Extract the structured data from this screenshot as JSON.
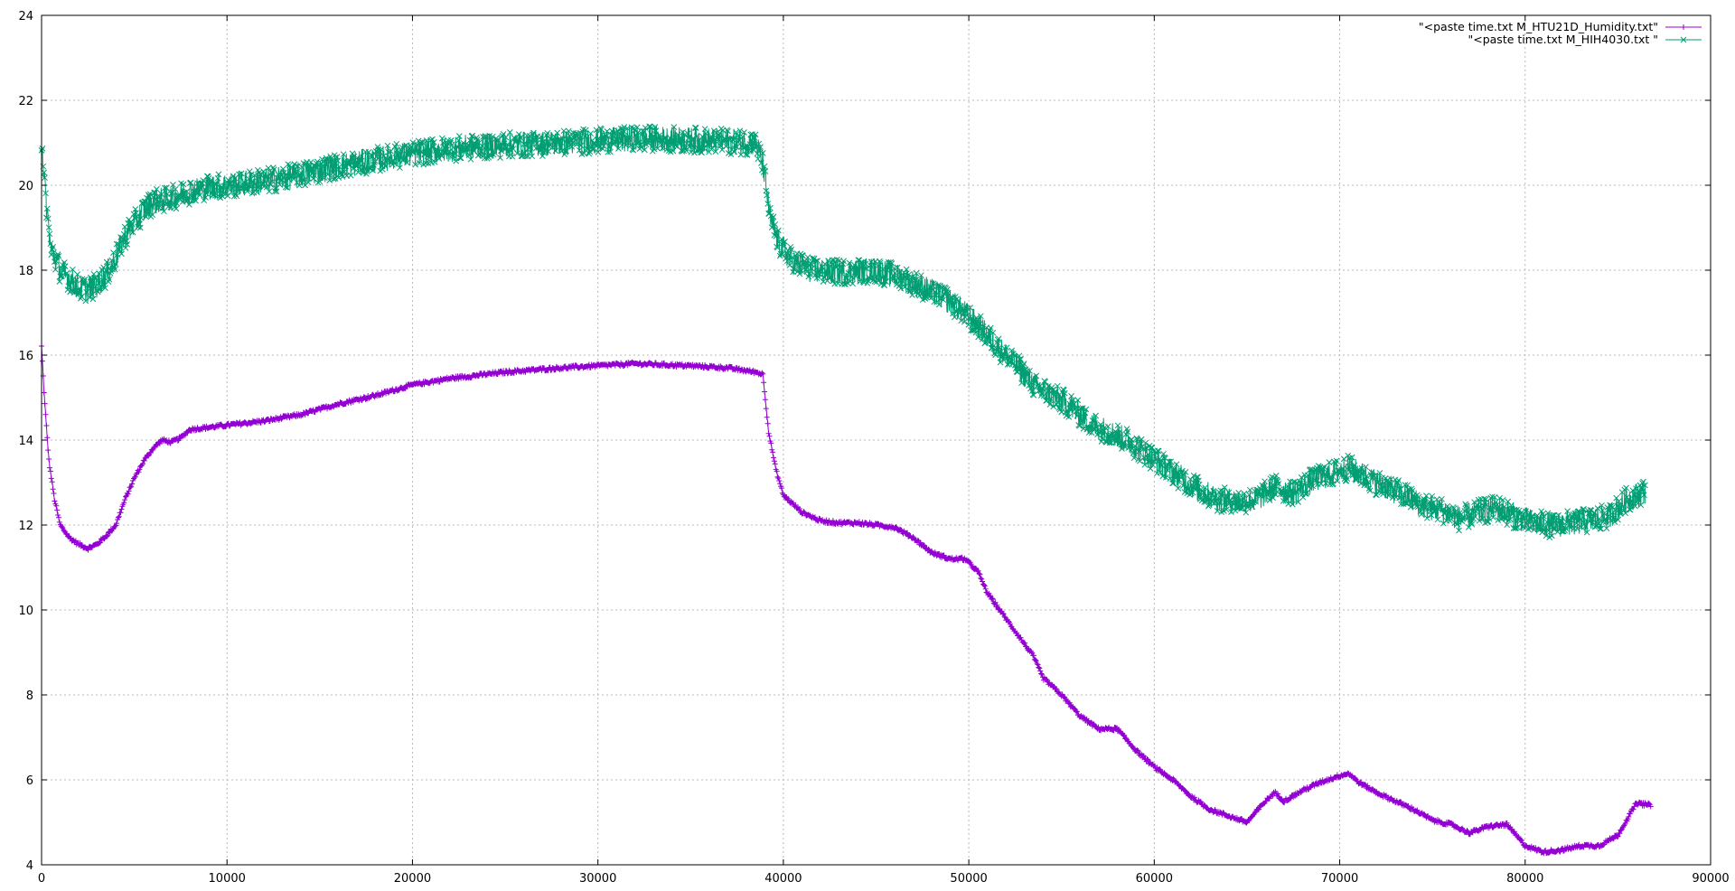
{
  "chart_data": {
    "type": "line",
    "title": "",
    "xlabel": "",
    "ylabel": "",
    "xlim": [
      0,
      90000
    ],
    "ylim": [
      4,
      24
    ],
    "xticks": [
      0,
      10000,
      20000,
      30000,
      40000,
      50000,
      60000,
      70000,
      80000,
      90000
    ],
    "yticks": [
      4,
      6,
      8,
      10,
      12,
      14,
      16,
      18,
      20,
      22,
      24
    ],
    "grid": true,
    "legend_position": "top-right",
    "series": [
      {
        "name": "\"<paste time.txt M_HTU21D_Humidity.txt\"",
        "color": "#9400d3",
        "marker": "plus",
        "noise": 0.04,
        "x": [
          0,
          150,
          400,
          700,
          1000,
          1500,
          2000,
          2500,
          3000,
          3500,
          4000,
          4500,
          5000,
          5500,
          6000,
          6500,
          7000,
          7500,
          8000,
          9000,
          10000,
          12000,
          14000,
          16000,
          18000,
          20000,
          22000,
          25000,
          28000,
          30000,
          32000,
          35000,
          37000,
          38500,
          38900,
          39200,
          39600,
          40000,
          41000,
          42000,
          43000,
          44000,
          45000,
          46000,
          47000,
          48000,
          49000,
          49800,
          50500,
          51000,
          52000,
          53000,
          53500,
          54000,
          55000,
          56000,
          57000,
          58000,
          59000,
          60000,
          61000,
          62000,
          63000,
          64000,
          65000,
          66000,
          66500,
          67000,
          68000,
          69000,
          70000,
          70500,
          71000,
          72000,
          73000,
          74000,
          75000,
          76000,
          77000,
          78000,
          79000,
          80000,
          81000,
          82000,
          83000,
          84000,
          85000,
          86000,
          86800
        ],
        "y": [
          16.2,
          15.0,
          13.5,
          12.6,
          12.0,
          11.7,
          11.55,
          11.45,
          11.55,
          11.75,
          12.0,
          12.6,
          13.1,
          13.5,
          13.8,
          14.0,
          13.95,
          14.05,
          14.25,
          14.3,
          14.35,
          14.45,
          14.6,
          14.85,
          15.05,
          15.3,
          15.45,
          15.6,
          15.7,
          15.75,
          15.8,
          15.75,
          15.7,
          15.6,
          15.55,
          14.2,
          13.3,
          12.7,
          12.3,
          12.1,
          12.05,
          12.05,
          12.0,
          11.95,
          11.7,
          11.35,
          11.2,
          11.2,
          10.9,
          10.4,
          9.8,
          9.2,
          8.9,
          8.4,
          8.0,
          7.5,
          7.2,
          7.2,
          6.7,
          6.3,
          6.0,
          5.6,
          5.3,
          5.15,
          5.0,
          5.5,
          5.7,
          5.5,
          5.75,
          5.95,
          6.1,
          6.15,
          5.95,
          5.7,
          5.5,
          5.3,
          5.05,
          4.95,
          4.75,
          4.9,
          4.95,
          4.45,
          4.3,
          4.35,
          4.45,
          4.45,
          4.7,
          5.45,
          5.4
        ]
      },
      {
        "name": "\"<paste time.txt M_HIH4030.txt \"",
        "color": "#009e73",
        "marker": "cross",
        "noise": 0.3,
        "x": [
          0,
          200,
          500,
          1000,
          1500,
          2000,
          2500,
          3000,
          3500,
          4000,
          4500,
          5000,
          5500,
          6000,
          7000,
          8000,
          9000,
          10000,
          12000,
          14000,
          16000,
          18000,
          20000,
          22000,
          25000,
          28000,
          30000,
          33000,
          36000,
          38500,
          38900,
          39300,
          39800,
          40500,
          41500,
          43000,
          45000,
          46500,
          47500,
          48500,
          49500,
          50500,
          51500,
          52500,
          53500,
          54500,
          55500,
          56500,
          57500,
          58500,
          59500,
          60500,
          61500,
          62500,
          63500,
          64500,
          65500,
          66500,
          67500,
          68500,
          69500,
          70500,
          71500,
          72500,
          73500,
          74500,
          75500,
          76500,
          77500,
          78500,
          79500,
          80500,
          81500,
          82500,
          83500,
          84500,
          85500,
          86500
        ],
        "y": [
          21.1,
          19.8,
          18.5,
          18.0,
          17.8,
          17.6,
          17.55,
          17.65,
          17.9,
          18.3,
          18.8,
          19.1,
          19.4,
          19.6,
          19.7,
          19.85,
          19.95,
          20.0,
          20.1,
          20.25,
          20.45,
          20.6,
          20.75,
          20.85,
          20.95,
          21.0,
          21.05,
          21.1,
          21.05,
          21.0,
          20.5,
          19.2,
          18.6,
          18.2,
          18.0,
          17.95,
          18.0,
          17.8,
          17.6,
          17.4,
          17.1,
          16.7,
          16.2,
          15.8,
          15.3,
          15.05,
          14.8,
          14.4,
          14.2,
          14.0,
          13.7,
          13.4,
          13.1,
          12.8,
          12.6,
          12.55,
          12.6,
          12.9,
          12.75,
          13.05,
          13.2,
          13.35,
          13.1,
          12.9,
          12.7,
          12.45,
          12.35,
          12.15,
          12.3,
          12.4,
          12.2,
          12.05,
          12.0,
          12.05,
          12.1,
          12.2,
          12.6,
          12.8
        ]
      }
    ]
  }
}
